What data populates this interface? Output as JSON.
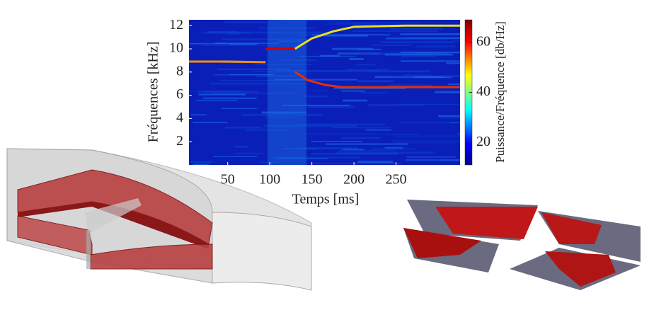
{
  "chart_data": {
    "type": "spectrogram",
    "x_label": "Temps [ms]",
    "y_label": "Fréquences [kHz]",
    "colorbar_label": "Puissance/Fréquence [db/Hz]",
    "xlim": [
      4,
      326
    ],
    "xticks": [
      50,
      100,
      150,
      200,
      250
    ],
    "ylim": [
      0,
      12.5
    ],
    "yticks": [
      2,
      4,
      6,
      8,
      10,
      12
    ],
    "zlim": [
      11,
      69
    ],
    "zticks": [
      20,
      40,
      60
    ],
    "colormap": "jet",
    "ridges": [
      {
        "color": "#ff8c00",
        "x": [
          4,
          50,
          95
        ],
        "y": [
          8.9,
          8.9,
          8.85
        ]
      },
      {
        "color": "#d40000",
        "x": [
          95,
          110,
          130
        ],
        "y": [
          10,
          10,
          10
        ]
      },
      {
        "color": "#e8e020",
        "x": [
          130,
          150,
          175,
          200,
          260,
          326
        ],
        "y": [
          10,
          10.9,
          11.5,
          11.9,
          12,
          12
        ]
      },
      {
        "color": "#e83000",
        "x": [
          130,
          145,
          165,
          185,
          230,
          326
        ],
        "y": [
          8,
          7.3,
          6.9,
          6.7,
          6.7,
          6.7
        ]
      }
    ]
  }
}
